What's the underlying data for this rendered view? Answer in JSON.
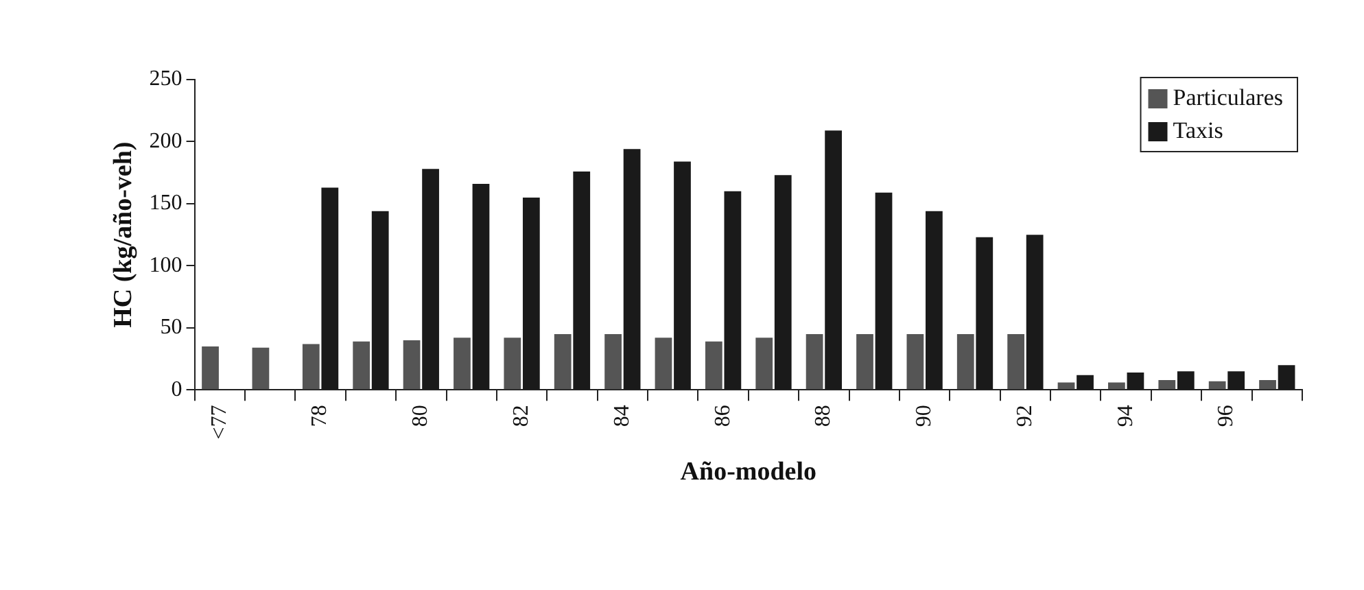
{
  "chart_data": {
    "type": "bar",
    "xlabel": "Año-modelo",
    "ylabel": "HC (kg/año-veh)",
    "categories": [
      "<77",
      null,
      "78",
      null,
      "80",
      null,
      "82",
      null,
      "84",
      null,
      "86",
      null,
      "88",
      null,
      "90",
      null,
      "92",
      null,
      "94",
      null,
      "96",
      null
    ],
    "series": [
      {
        "name": "Particulares",
        "color": "#555555",
        "values": [
          35,
          34,
          37,
          39,
          40,
          42,
          42,
          45,
          45,
          42,
          39,
          42,
          45,
          45,
          45,
          45,
          45,
          6,
          6,
          8,
          7,
          8
        ]
      },
      {
        "name": "Taxis",
        "color": "#1a1a1a",
        "values": [
          null,
          null,
          163,
          144,
          178,
          166,
          155,
          176,
          194,
          184,
          160,
          173,
          209,
          159,
          144,
          123,
          125,
          12,
          14,
          15,
          15,
          20
        ]
      }
    ],
    "ylim": [
      0,
      250
    ],
    "yticks": [
      0,
      50,
      100,
      150,
      200,
      250
    ],
    "grid": false,
    "legend": "top right"
  }
}
